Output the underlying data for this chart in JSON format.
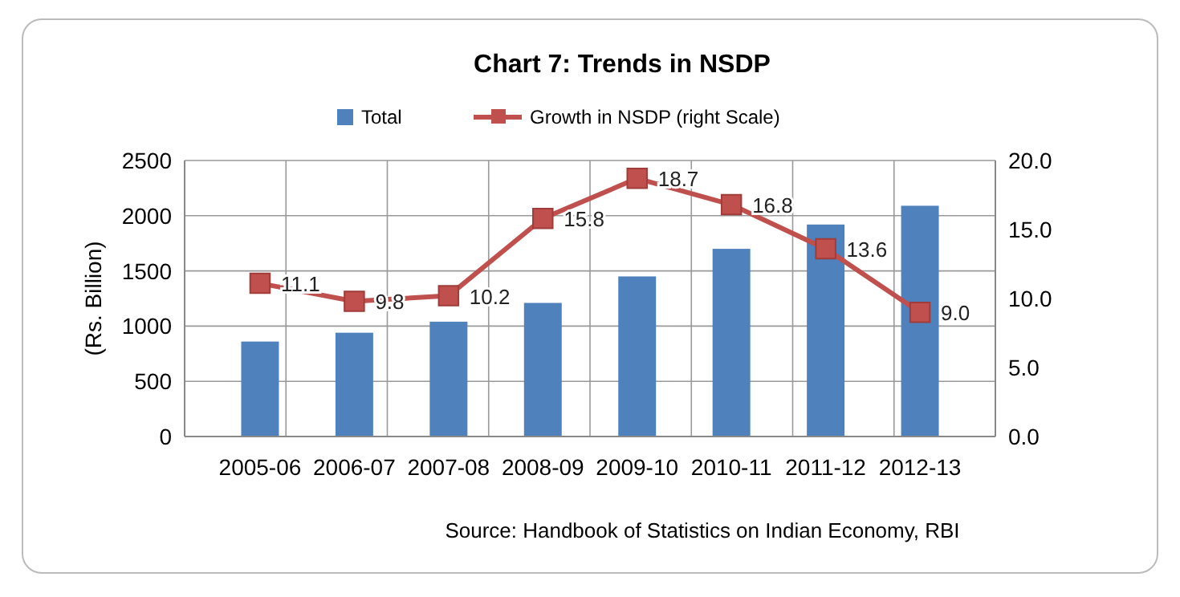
{
  "chart_data": {
    "type": "bar",
    "title": "Chart 7: Trends in NSDP",
    "ylabel": "(Rs. Billion)",
    "categories": [
      "2005-06",
      "2006-07",
      "2007-08",
      "2008-09",
      "2009-10",
      "2010-11",
      "2011-12",
      "2012-13"
    ],
    "series": [
      {
        "name": "Total",
        "color": "#4f81bd",
        "values": [
          860,
          940,
          1040,
          1210,
          1450,
          1700,
          1920,
          2090
        ]
      },
      {
        "name": "Growth in NSDP (right Scale)",
        "type": "line",
        "axis": "y2",
        "color": "#c0504d",
        "marker": "square",
        "values": [
          11.1,
          9.8,
          10.2,
          15.8,
          18.7,
          16.8,
          13.6,
          9.0
        ],
        "value_labels": [
          "11.1",
          "9.8",
          "10.2",
          "15.8",
          "18.7",
          "16.8",
          "13.6",
          "9.0"
        ]
      }
    ],
    "ylim": [
      0,
      2500
    ],
    "yticks": [
      0,
      500,
      1000,
      1500,
      2000,
      2500
    ],
    "y2lim": [
      0,
      20
    ],
    "y2ticks": [
      {
        "value": 0,
        "label": "0.0"
      },
      {
        "value": 5,
        "label": "5.0"
      },
      {
        "value": 10,
        "label": "10.0"
      },
      {
        "value": 15,
        "label": "15.0"
      },
      {
        "value": 20,
        "label": "20.0"
      }
    ],
    "grid": true,
    "legend": "top",
    "annotations": [
      "Source: Handbook of Statistics on Indian Economy, RBI"
    ]
  }
}
